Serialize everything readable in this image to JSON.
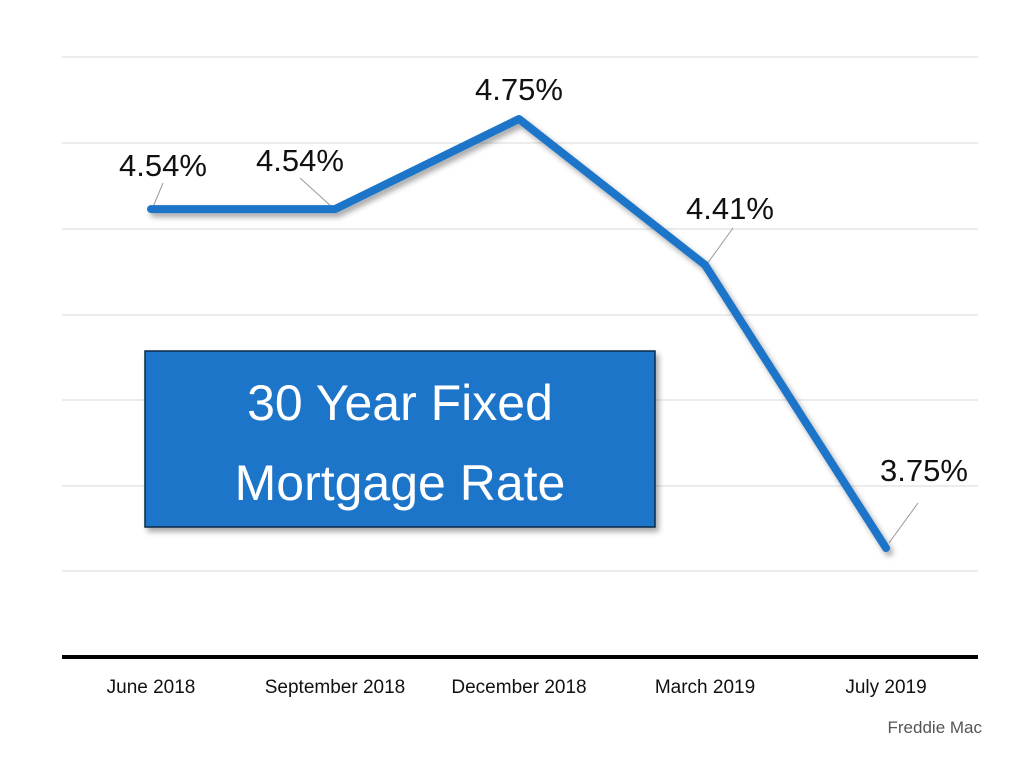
{
  "chart_data": {
    "type": "line",
    "title_lines": [
      "30 Year Fixed",
      "Mortgage Rate"
    ],
    "categories": [
      "June 2018",
      "September 2018",
      "December 2018",
      "March 2019",
      "July 2019"
    ],
    "values": [
      4.54,
      4.54,
      4.75,
      4.41,
      3.75
    ],
    "data_labels": [
      "4.54%",
      "4.54%",
      "4.75%",
      "4.41%",
      "3.75%"
    ],
    "source": "Freddie Mac",
    "ylim": [
      3.5,
      4.9
    ],
    "grid": true,
    "colors": {
      "line": "#1a75c9",
      "title_box": "#1a75c9",
      "gridline": "#d9d9d9",
      "axis": "#000000"
    }
  }
}
